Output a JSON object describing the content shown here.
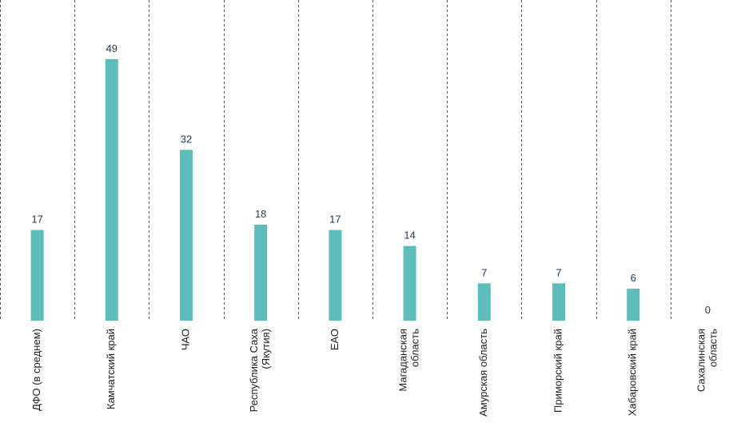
{
  "chart_data": {
    "type": "bar",
    "categories": [
      [
        "ДФО (в среднем)"
      ],
      [
        "Камчатский край"
      ],
      [
        "ЧАО"
      ],
      [
        "Республика Саха",
        "(Якутия)"
      ],
      [
        "ЕАО"
      ],
      [
        "Магаданская",
        "область"
      ],
      [
        "Амурская область"
      ],
      [
        "Приморский край"
      ],
      [
        "Хабаровский край"
      ],
      [
        "Сахалинская",
        "область"
      ]
    ],
    "values": [
      17,
      49,
      32,
      18,
      17,
      14,
      7,
      7,
      6,
      0
    ],
    "ylim": [
      0,
      60
    ],
    "grid": false,
    "bar_color": "#5dbdbb",
    "separator_color": "#555555",
    "label_color": "#1f3a5a"
  }
}
